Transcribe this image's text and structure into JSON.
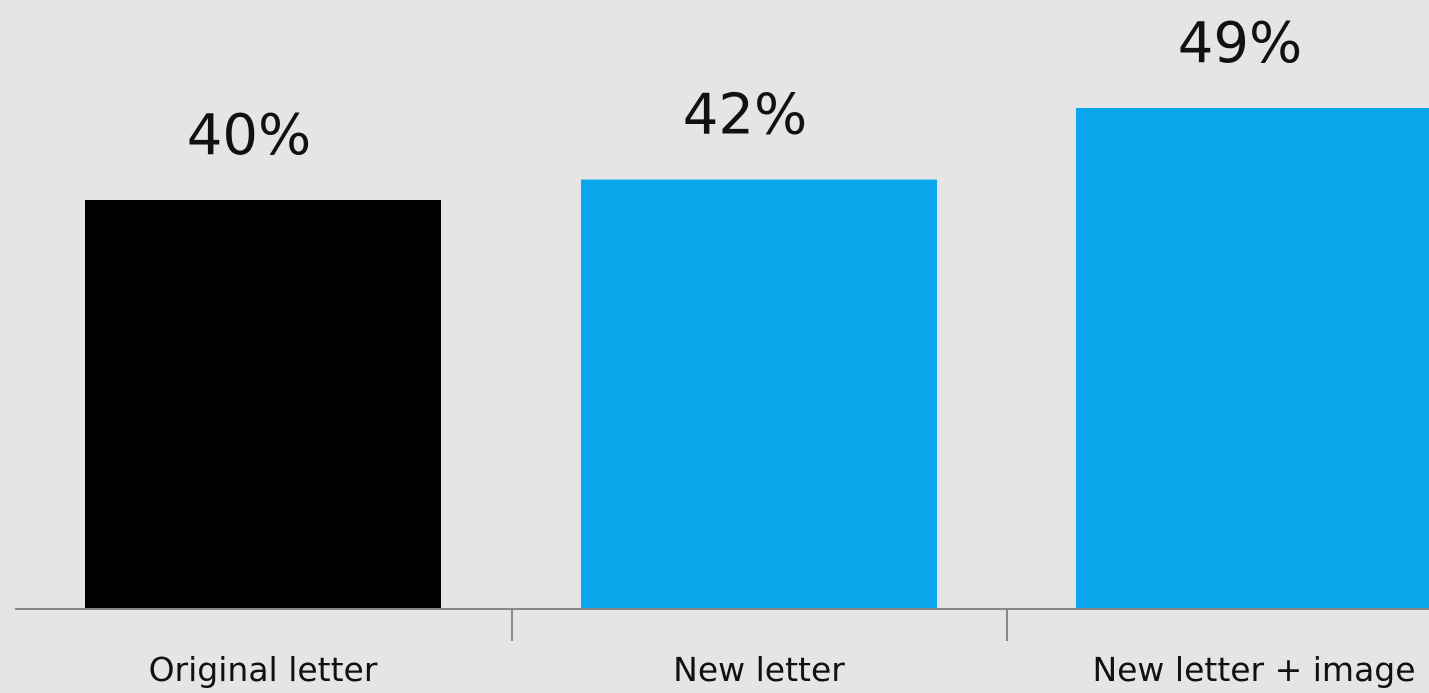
{
  "chart_data": {
    "type": "bar",
    "title": "",
    "xlabel": "",
    "ylabel": "",
    "categories": [
      "Original letter",
      "New letter",
      "New letter + image"
    ],
    "values": [
      40,
      42,
      49
    ],
    "value_labels": [
      "40%",
      "42%",
      "49%"
    ],
    "ylim": [
      0,
      49
    ],
    "grid": false,
    "legend": "none",
    "colors": [
      "#000000",
      "#0aa5ea",
      "#0aa5ea"
    ]
  },
  "colors": {
    "background": "#e4e5e7",
    "axis": "#888888",
    "text": "#111111"
  }
}
